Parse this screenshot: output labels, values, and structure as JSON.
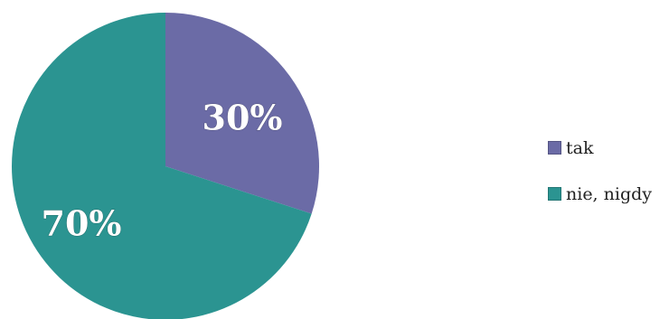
{
  "chart_data": {
    "type": "pie",
    "categories": [
      "tak",
      "nie, nigdy"
    ],
    "values": [
      30,
      70
    ],
    "data_labels": [
      "30%",
      "70%"
    ],
    "colors": [
      "#6b6ba6",
      "#2b9491"
    ],
    "legend_position": "right",
    "start_angle": "top, clockwise"
  }
}
